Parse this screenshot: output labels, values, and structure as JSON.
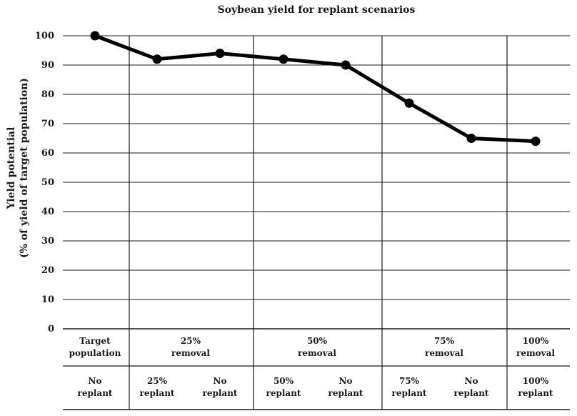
{
  "chart_data": {
    "type": "line",
    "title": "Soybean yield for replant scenarios",
    "ylabel": [
      "Yield potential",
      "(% of yield of target population)"
    ],
    "ylim": [
      0,
      100
    ],
    "yticks": [
      0,
      10,
      20,
      30,
      40,
      50,
      60,
      70,
      80,
      90,
      100
    ],
    "groups": [
      {
        "label": [
          "Target",
          "population"
        ]
      },
      {
        "label": [
          "25%",
          "removal"
        ]
      },
      {
        "label": [
          "50%",
          "removal"
        ]
      },
      {
        "label": [
          "75%",
          "removal"
        ]
      },
      {
        "label": [
          "100%",
          "removal"
        ]
      }
    ],
    "categories": [
      [
        "No",
        "replant"
      ],
      [
        "25%",
        "replant"
      ],
      [
        "No",
        "replant"
      ],
      [
        "50%",
        "replant"
      ],
      [
        "No",
        "replant"
      ],
      [
        "75%",
        "replant"
      ],
      [
        "No",
        "replant"
      ],
      [
        "100%",
        "replant"
      ]
    ],
    "values": [
      100,
      92,
      94,
      92,
      90,
      77,
      65,
      64
    ],
    "grid": true,
    "line_color": "#000000"
  }
}
